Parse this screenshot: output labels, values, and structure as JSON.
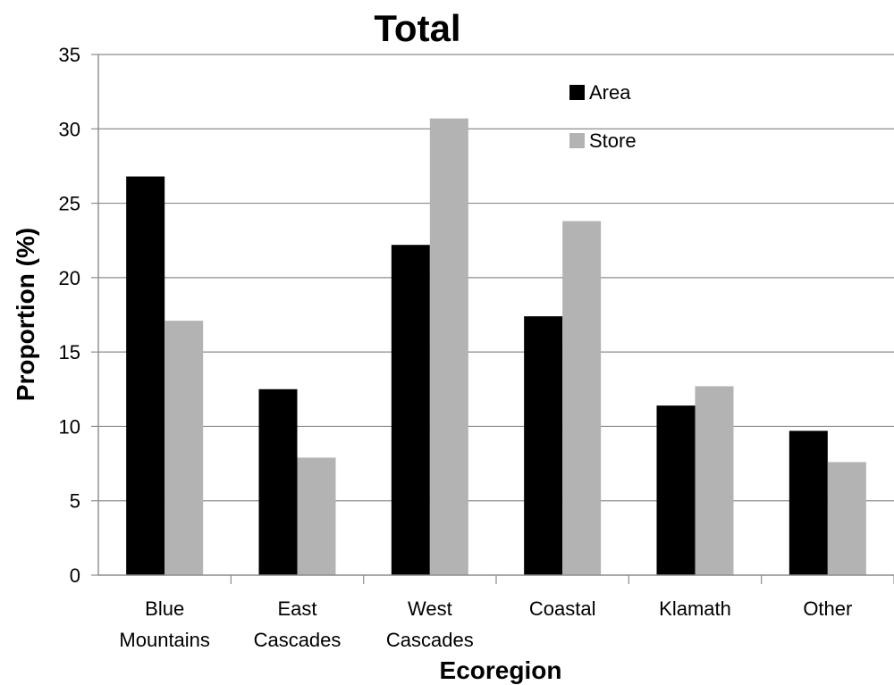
{
  "chart_data": {
    "type": "bar",
    "title": "Total",
    "xlabel": "Ecoregion",
    "ylabel": "Proportion (%)",
    "ylim": [
      0,
      35
    ],
    "yticks": [
      0,
      5,
      10,
      15,
      20,
      25,
      30,
      35
    ],
    "categories": [
      [
        "Blue",
        "Mountains"
      ],
      [
        "East",
        "Cascades"
      ],
      [
        "West",
        "Cascades"
      ],
      [
        "Coastal"
      ],
      [
        "Klamath"
      ],
      [
        "Other"
      ]
    ],
    "series": [
      {
        "name": "Area",
        "color": "#000000",
        "values": [
          26.8,
          12.5,
          22.2,
          17.4,
          11.4,
          9.7
        ]
      },
      {
        "name": "Store",
        "color": "#b3b3b3",
        "values": [
          17.1,
          7.9,
          30.7,
          23.8,
          12.7,
          7.6
        ]
      }
    ],
    "grid": true,
    "legend_position": "top-right"
  }
}
